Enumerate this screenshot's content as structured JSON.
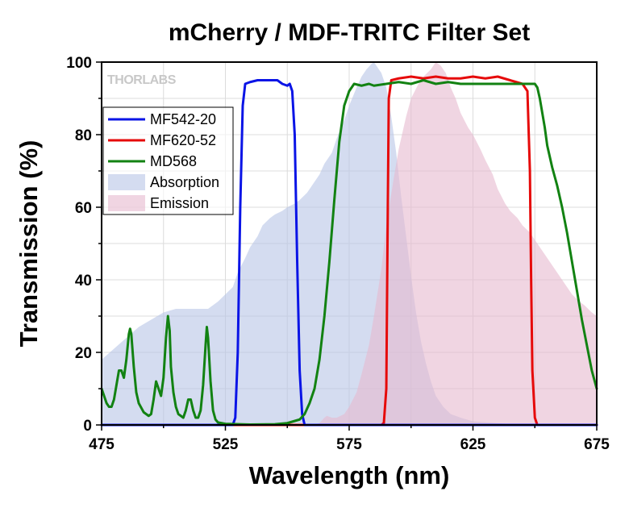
{
  "chart_data": {
    "type": "line",
    "title": "mCherry / MDF-TRITC Filter Set",
    "xlabel": "Wavelength (nm)",
    "ylabel": "Transmission (%)",
    "xlim": [
      475,
      675
    ],
    "ylim": [
      0,
      100
    ],
    "xticks": [
      "475",
      "525",
      "575",
      "625",
      "675"
    ],
    "yticks": [
      "0",
      "20",
      "40",
      "60",
      "80",
      "100"
    ],
    "grid": true,
    "legend_position": "top-left",
    "watermark": "THORLABS",
    "series": [
      {
        "name": "MF542-20",
        "kind": "line",
        "color": "#0a14e6",
        "points": [
          [
            475,
            0
          ],
          [
            525,
            0
          ],
          [
            528,
            0
          ],
          [
            529,
            2
          ],
          [
            530,
            20
          ],
          [
            531,
            60
          ],
          [
            532,
            88
          ],
          [
            533,
            94
          ],
          [
            535,
            94.5
          ],
          [
            538,
            95
          ],
          [
            542,
            95
          ],
          [
            546,
            95
          ],
          [
            548,
            94
          ],
          [
            550,
            93.5
          ],
          [
            551,
            94
          ],
          [
            552,
            92
          ],
          [
            553,
            80
          ],
          [
            554,
            45
          ],
          [
            555,
            15
          ],
          [
            556,
            3
          ],
          [
            557,
            0
          ],
          [
            675,
            0
          ]
        ]
      },
      {
        "name": "MF620-52",
        "kind": "line",
        "color": "#e60a0a",
        "points": [
          [
            475,
            0
          ],
          [
            588,
            0
          ],
          [
            589,
            0.5
          ],
          [
            590,
            10
          ],
          [
            590.6,
            60
          ],
          [
            591,
            90
          ],
          [
            592,
            95
          ],
          [
            595,
            95.5
          ],
          [
            600,
            96
          ],
          [
            605,
            95.5
          ],
          [
            610,
            96
          ],
          [
            615,
            95.5
          ],
          [
            620,
            95.5
          ],
          [
            625,
            96
          ],
          [
            630,
            95.5
          ],
          [
            635,
            96
          ],
          [
            640,
            95
          ],
          [
            645,
            94
          ],
          [
            646,
            93
          ],
          [
            647,
            92
          ],
          [
            648,
            70
          ],
          [
            648.5,
            40
          ],
          [
            649,
            15
          ],
          [
            650,
            2
          ],
          [
            651,
            0
          ],
          [
            675,
            0
          ]
        ]
      },
      {
        "name": "MD568",
        "kind": "line",
        "color": "#128212",
        "points": [
          [
            475,
            10
          ],
          [
            476,
            8
          ],
          [
            477,
            6
          ],
          [
            478,
            5
          ],
          [
            479,
            5
          ],
          [
            480,
            7
          ],
          [
            481,
            11
          ],
          [
            482,
            15
          ],
          [
            483,
            15
          ],
          [
            484,
            13
          ],
          [
            485,
            18
          ],
          [
            486,
            25
          ],
          [
            486.5,
            26.5
          ],
          [
            487,
            25
          ],
          [
            488,
            16
          ],
          [
            489,
            9
          ],
          [
            490,
            6
          ],
          [
            492,
            3.5
          ],
          [
            494,
            2.5
          ],
          [
            495,
            3
          ],
          [
            496,
            7
          ],
          [
            497,
            12
          ],
          [
            498,
            10
          ],
          [
            499,
            8
          ],
          [
            500,
            13
          ],
          [
            501,
            24
          ],
          [
            501.8,
            30
          ],
          [
            502.5,
            26
          ],
          [
            503,
            16
          ],
          [
            504,
            9
          ],
          [
            505,
            5
          ],
          [
            506,
            3
          ],
          [
            508,
            2
          ],
          [
            509,
            4
          ],
          [
            510,
            7
          ],
          [
            511,
            7
          ],
          [
            512,
            4
          ],
          [
            513,
            2
          ],
          [
            514,
            2
          ],
          [
            515,
            4
          ],
          [
            516,
            11
          ],
          [
            517,
            22
          ],
          [
            517.5,
            27
          ],
          [
            518,
            24
          ],
          [
            519,
            12
          ],
          [
            520,
            4
          ],
          [
            521,
            1.5
          ],
          [
            522,
            0.7
          ],
          [
            525,
            0.3
          ],
          [
            535,
            0.1
          ],
          [
            545,
            0.2
          ],
          [
            550,
            0.5
          ],
          [
            555,
            1.5
          ],
          [
            557,
            3
          ],
          [
            559,
            6
          ],
          [
            561,
            10
          ],
          [
            563,
            18
          ],
          [
            565,
            30
          ],
          [
            567,
            45
          ],
          [
            569,
            62
          ],
          [
            571,
            78
          ],
          [
            573,
            88
          ],
          [
            575,
            92
          ],
          [
            577,
            94
          ],
          [
            580,
            93.5
          ],
          [
            583,
            94
          ],
          [
            585,
            93.5
          ],
          [
            590,
            94
          ],
          [
            595,
            94.5
          ],
          [
            600,
            94
          ],
          [
            605,
            95
          ],
          [
            610,
            94
          ],
          [
            615,
            94.5
          ],
          [
            620,
            94
          ],
          [
            625,
            94
          ],
          [
            630,
            94
          ],
          [
            635,
            94
          ],
          [
            640,
            94
          ],
          [
            645,
            94
          ],
          [
            650,
            94
          ],
          [
            651,
            93
          ],
          [
            652,
            90
          ],
          [
            653,
            86
          ],
          [
            654,
            82
          ],
          [
            655,
            77
          ],
          [
            657,
            71
          ],
          [
            659,
            66
          ],
          [
            661,
            60
          ],
          [
            663,
            53
          ],
          [
            665,
            45
          ],
          [
            667,
            37
          ],
          [
            669,
            29
          ],
          [
            671,
            22
          ],
          [
            673,
            15
          ],
          [
            675,
            10
          ]
        ]
      },
      {
        "name": "Absorption",
        "kind": "area",
        "color": "#b7c4e6",
        "opacity": 0.6,
        "points": [
          [
            475,
            18
          ],
          [
            480,
            21
          ],
          [
            485,
            24
          ],
          [
            490,
            27
          ],
          [
            495,
            29
          ],
          [
            500,
            31
          ],
          [
            505,
            32
          ],
          [
            510,
            32
          ],
          [
            515,
            32
          ],
          [
            518,
            32
          ],
          [
            520,
            33
          ],
          [
            522,
            34
          ],
          [
            525,
            36
          ],
          [
            528,
            38
          ],
          [
            530,
            42
          ],
          [
            533,
            46
          ],
          [
            535,
            49
          ],
          [
            538,
            52
          ],
          [
            540,
            55
          ],
          [
            543,
            57
          ],
          [
            545,
            58
          ],
          [
            548,
            59
          ],
          [
            550,
            60
          ],
          [
            553,
            61
          ],
          [
            555,
            62
          ],
          [
            558,
            64
          ],
          [
            560,
            66
          ],
          [
            563,
            69
          ],
          [
            565,
            72
          ],
          [
            568,
            75
          ],
          [
            570,
            79
          ],
          [
            573,
            84
          ],
          [
            575,
            88
          ],
          [
            578,
            93
          ],
          [
            580,
            96
          ],
          [
            582,
            98
          ],
          [
            584,
            99.5
          ],
          [
            585,
            100
          ],
          [
            586,
            99
          ],
          [
            588,
            97
          ],
          [
            590,
            93
          ],
          [
            592,
            85
          ],
          [
            594,
            75
          ],
          [
            596,
            63
          ],
          [
            598,
            52
          ],
          [
            600,
            41
          ],
          [
            602,
            31
          ],
          [
            604,
            23
          ],
          [
            606,
            17
          ],
          [
            608,
            12
          ],
          [
            610,
            8
          ],
          [
            613,
            5
          ],
          [
            616,
            3
          ],
          [
            620,
            2
          ],
          [
            625,
            1
          ],
          [
            635,
            0.5
          ],
          [
            645,
            0
          ]
        ]
      },
      {
        "name": "Emission",
        "kind": "area",
        "color": "#e6b9cf",
        "opacity": 0.6,
        "points": [
          [
            560,
            0
          ],
          [
            563,
            0.5
          ],
          [
            565,
            2
          ],
          [
            566,
            2.5
          ],
          [
            568,
            2
          ],
          [
            570,
            2
          ],
          [
            573,
            3
          ],
          [
            575,
            5
          ],
          [
            578,
            9
          ],
          [
            580,
            14
          ],
          [
            583,
            22
          ],
          [
            585,
            30
          ],
          [
            588,
            43
          ],
          [
            590,
            55
          ],
          [
            593,
            68
          ],
          [
            595,
            76
          ],
          [
            598,
            85
          ],
          [
            600,
            90
          ],
          [
            603,
            94
          ],
          [
            605,
            96
          ],
          [
            608,
            98
          ],
          [
            610,
            100
          ],
          [
            612,
            99
          ],
          [
            614,
            97
          ],
          [
            616,
            93
          ],
          [
            618,
            90
          ],
          [
            620,
            86
          ],
          [
            623,
            82
          ],
          [
            625,
            80
          ],
          [
            628,
            76
          ],
          [
            630,
            73
          ],
          [
            633,
            69
          ],
          [
            635,
            65
          ],
          [
            638,
            61
          ],
          [
            640,
            59
          ],
          [
            643,
            57
          ],
          [
            645,
            55
          ],
          [
            648,
            53
          ],
          [
            650,
            51
          ],
          [
            653,
            48
          ],
          [
            655,
            46
          ],
          [
            658,
            43
          ],
          [
            660,
            41
          ],
          [
            663,
            38
          ],
          [
            665,
            36
          ],
          [
            668,
            34
          ],
          [
            670,
            33
          ],
          [
            673,
            31
          ],
          [
            675,
            30
          ]
        ]
      }
    ]
  }
}
